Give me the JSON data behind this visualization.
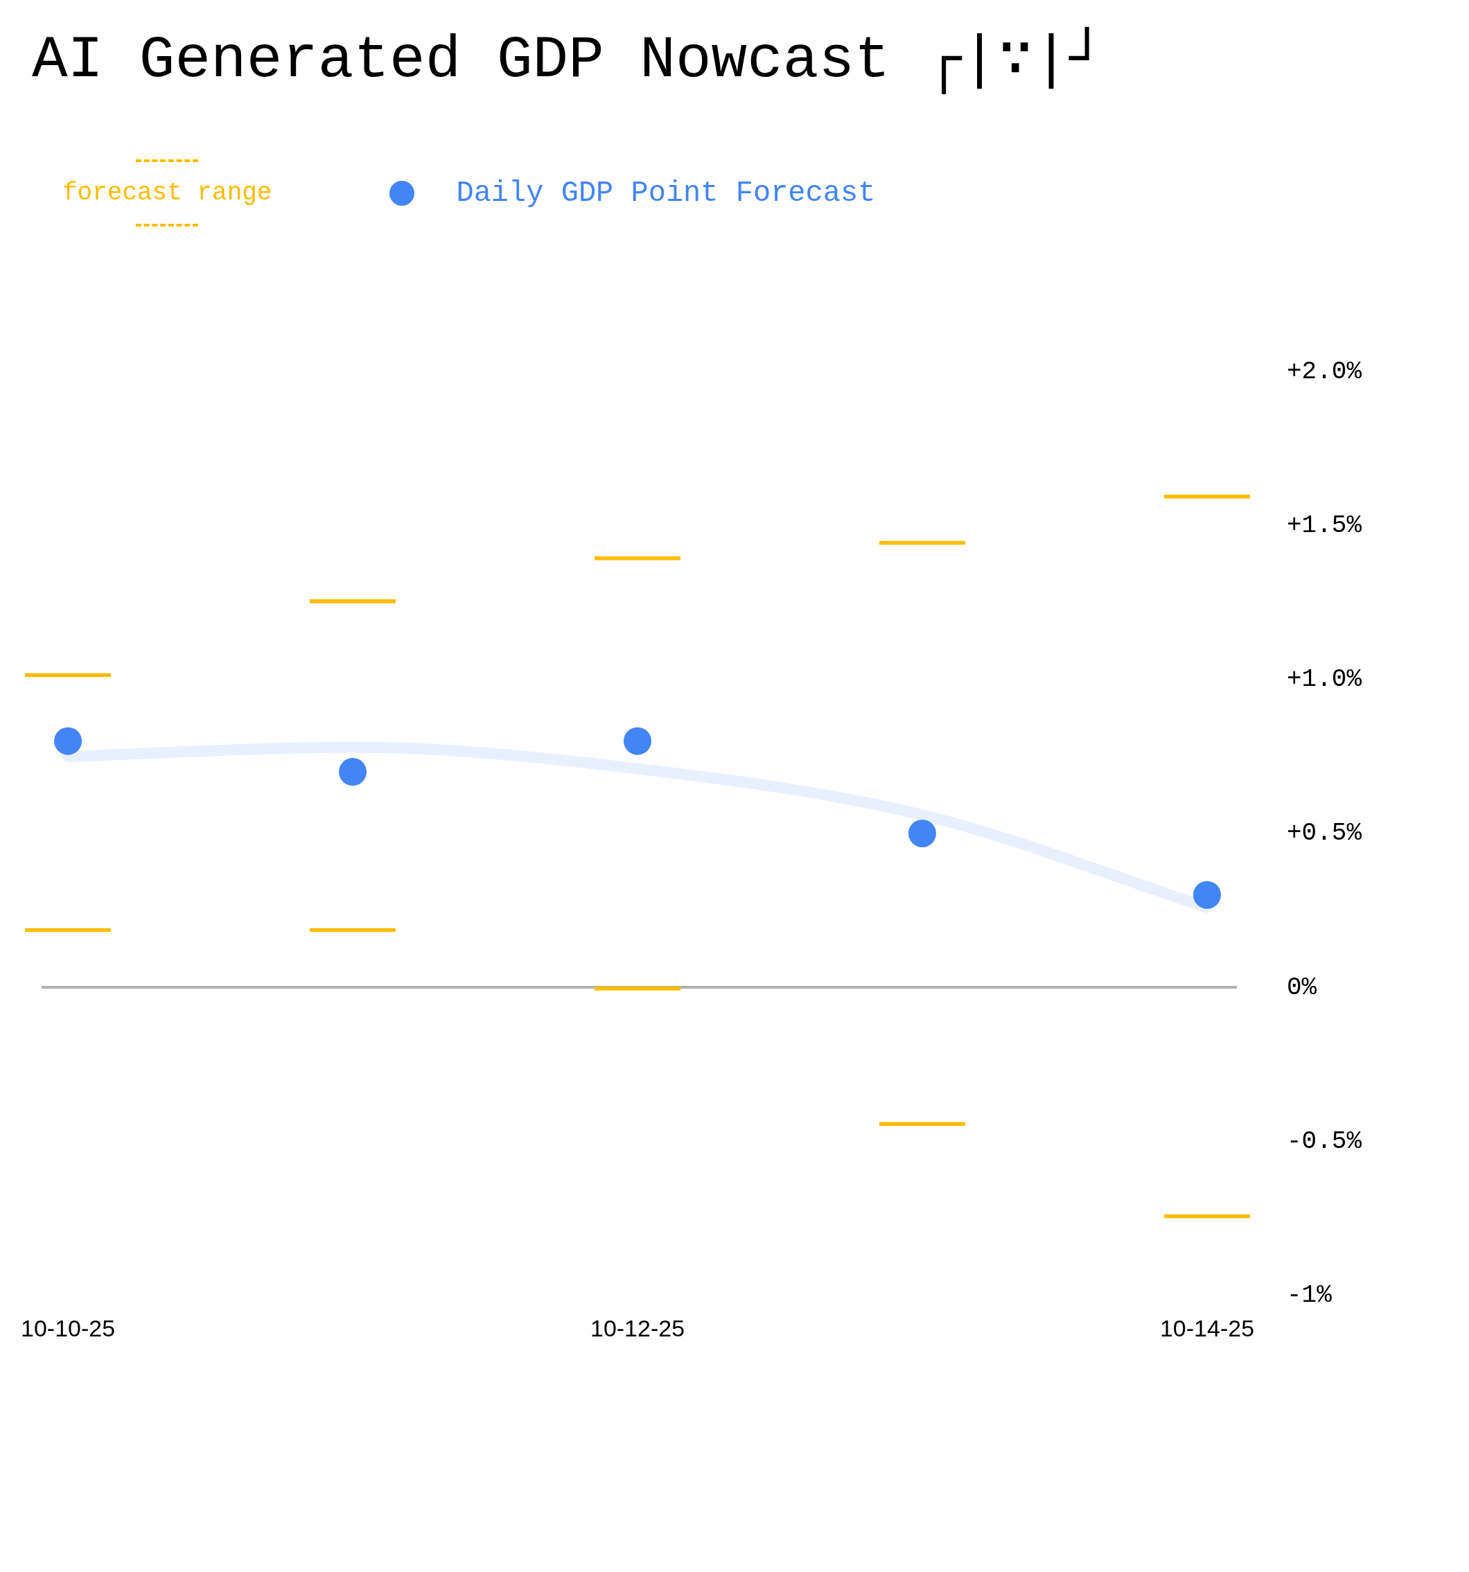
{
  "chart_data": {
    "type": "scatter",
    "title": "AI Generated GDP Nowcast ┌|∵|┘",
    "categories": [
      "10-10-25",
      null,
      "10-12-25",
      null,
      "10-14-25"
    ],
    "series": [
      {
        "type": "line",
        "color": "#e8f0fe",
        "values": [
          0.75,
          0.78,
          0.71,
          0.56,
          0.26
        ]
      },
      {
        "name": "forecast range",
        "type": "bar",
        "color": "#fbbc04",
        "base": [
          0.18,
          0.18,
          -0.01,
          -0.45,
          -0.75
        ],
        "values": [
          0.84,
          1.08,
          1.41,
          1.9,
          2.35
        ]
      },
      {
        "name": "Daily GDP Point Forecast",
        "marker": "circle",
        "color": "#4285f4",
        "values": [
          0.8,
          0.7,
          0.8,
          0.5,
          0.3
        ]
      }
    ],
    "ylim": [
      -1,
      2
    ],
    "yticks": [
      {
        "value": 2,
        "label": "+2.0%"
      },
      {
        "value": 1.5,
        "label": "+1.5%"
      },
      {
        "value": 1,
        "label": "+1.0%"
      },
      {
        "value": 0.5,
        "label": "+0.5%"
      },
      {
        "value": 0,
        "label": "0%"
      },
      {
        "value": -0.5,
        "label": "-0.5%"
      },
      {
        "value": -1,
        "label": "-1%"
      }
    ],
    "ref_lines": [
      {
        "axis": "y",
        "value": 0,
        "color": "#b0b0b0"
      }
    ],
    "legend": "top left"
  }
}
